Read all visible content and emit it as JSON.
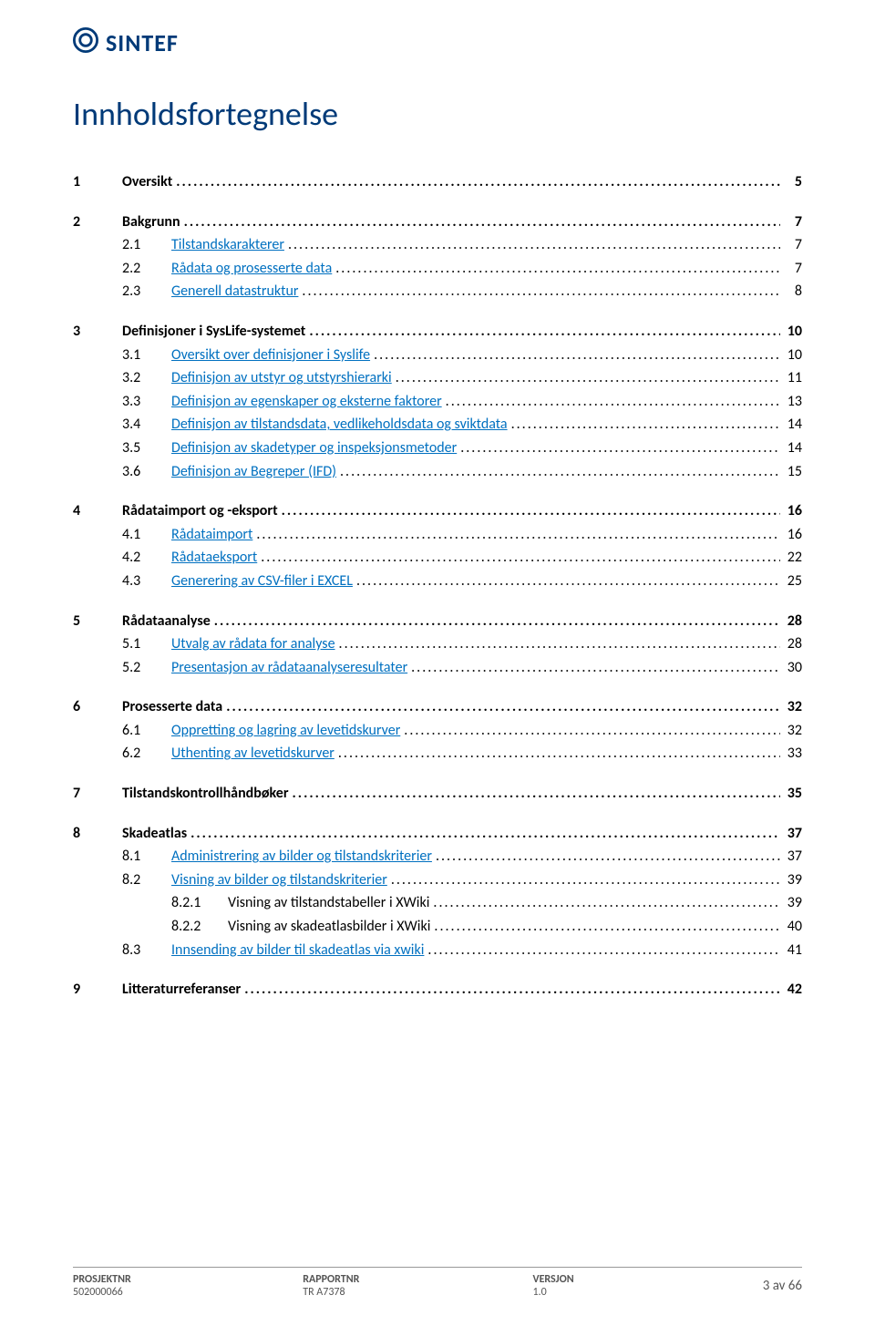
{
  "brand": {
    "name": "SINTEF",
    "logo_color": "#003a78"
  },
  "title": "Innholdsfortegnelse",
  "colors": {
    "heading": "#003a78",
    "link": "#0070c0",
    "text": "#000000",
    "footer_text": "#555555",
    "footer_rule": "#999999",
    "background": "#ffffff"
  },
  "toc": [
    {
      "level": 1,
      "num": "1",
      "label": "Oversikt",
      "page": "5",
      "link": false
    },
    {
      "level": 1,
      "num": "2",
      "label": "Bakgrunn",
      "page": "7",
      "link": false
    },
    {
      "level": 2,
      "num": "2.1",
      "label": "Tilstandskarakterer",
      "page": "7",
      "link": true
    },
    {
      "level": 2,
      "num": "2.2",
      "label": "Rådata og prosesserte data",
      "page": "7",
      "link": true
    },
    {
      "level": 2,
      "num": "2.3",
      "label": "Generell datastruktur",
      "page": "8",
      "link": true
    },
    {
      "level": 1,
      "num": "3",
      "label": "Definisjoner i SysLife-systemet",
      "page": "10",
      "link": false
    },
    {
      "level": 2,
      "num": "3.1",
      "label": "Oversikt over definisjoner i Syslife",
      "page": "10",
      "link": true
    },
    {
      "level": 2,
      "num": "3.2",
      "label": "Definisjon av utstyr og utstyrshierarki",
      "page": "11",
      "link": true
    },
    {
      "level": 2,
      "num": "3.3",
      "label": "Definisjon av egenskaper og eksterne faktorer",
      "page": "13",
      "link": true
    },
    {
      "level": 2,
      "num": "3.4",
      "label": "Definisjon av tilstandsdata, vedlikeholdsdata og sviktdata",
      "page": "14",
      "link": true
    },
    {
      "level": 2,
      "num": "3.5",
      "label": "Definisjon av skadetyper og inspeksjonsmetoder",
      "page": "14",
      "link": true
    },
    {
      "level": 2,
      "num": "3.6",
      "label": "Definisjon av Begreper (IFD)",
      "page": "15",
      "link": true
    },
    {
      "level": 1,
      "num": "4",
      "label": "Rådataimport og -eksport",
      "page": "16",
      "link": false
    },
    {
      "level": 2,
      "num": "4.1",
      "label": "Rådataimport",
      "page": "16",
      "link": true
    },
    {
      "level": 2,
      "num": "4.2",
      "label": "Rådataeksport",
      "page": "22",
      "link": true
    },
    {
      "level": 2,
      "num": "4.3",
      "label": "Generering av CSV-filer i EXCEL",
      "page": "25",
      "link": true
    },
    {
      "level": 1,
      "num": "5",
      "label": "Rådataanalyse",
      "page": "28",
      "link": false
    },
    {
      "level": 2,
      "num": "5.1",
      "label": "Utvalg av rådata for analyse",
      "page": "28",
      "link": true
    },
    {
      "level": 2,
      "num": "5.2",
      "label": "Presentasjon av rådataanalyseresultater",
      "page": "30",
      "link": true
    },
    {
      "level": 1,
      "num": "6",
      "label": "Prosesserte data",
      "page": "32",
      "link": false
    },
    {
      "level": 2,
      "num": "6.1",
      "label": "Oppretting og lagring av levetidskurver",
      "page": "32",
      "link": true
    },
    {
      "level": 2,
      "num": "6.2",
      "label": "Uthenting av levetidskurver",
      "page": "33",
      "link": true
    },
    {
      "level": 1,
      "num": "7",
      "label": "Tilstandskontrollhåndbøker",
      "page": "35",
      "link": false
    },
    {
      "level": 1,
      "num": "8",
      "label": "Skadeatlas",
      "page": "37",
      "link": false
    },
    {
      "level": 2,
      "num": "8.1",
      "label": "Administrering av bilder og tilstandskriterier",
      "page": "37",
      "link": true
    },
    {
      "level": 2,
      "num": "8.2",
      "label": "Visning av bilder og tilstandskriterier",
      "page": "39",
      "link": true
    },
    {
      "level": 3,
      "num": "8.2.1",
      "label": "Visning av tilstandstabeller i XWiki",
      "page": "39",
      "link": false
    },
    {
      "level": 3,
      "num": "8.2.2",
      "label": "Visning av skadeatlasbilder i XWiki",
      "page": "40",
      "link": false
    },
    {
      "level": 2,
      "num": "8.3",
      "label": "Innsending av bilder til skadeatlas via xwiki",
      "page": "41",
      "link": true
    },
    {
      "level": 1,
      "num": "9",
      "label": "Litteraturreferanser",
      "page": "42",
      "link": false
    }
  ],
  "footer": {
    "col1": {
      "label": "PROSJEKTNR",
      "value": "502000066"
    },
    "col2": {
      "label": "RAPPORTNR",
      "value": "TR A7378"
    },
    "col3": {
      "label": "VERSJON",
      "value": "1.0"
    },
    "page": "3 av 66"
  }
}
